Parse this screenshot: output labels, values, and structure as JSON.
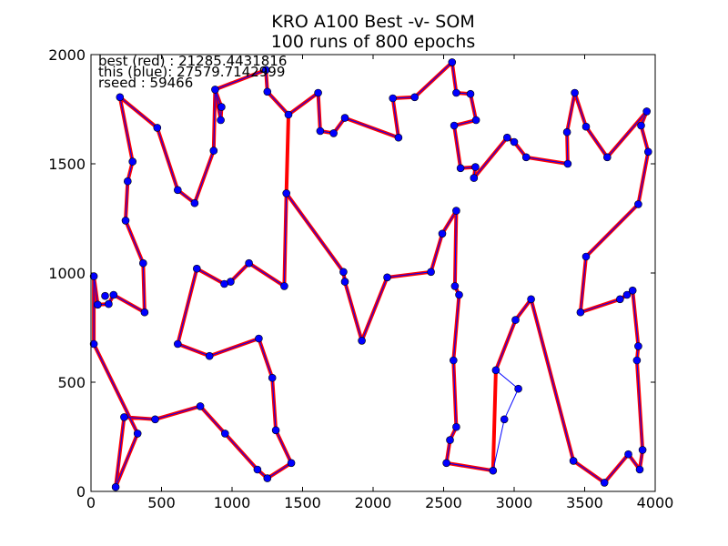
{
  "chart_data": {
    "type": "line",
    "title": "KRO A100 Best -v- SOM",
    "subtitle": "100 runs of 800 epochs",
    "xlabel": "",
    "ylabel": "",
    "xlim": [
      0,
      4000
    ],
    "ylim": [
      0,
      2000
    ],
    "x_ticks": [
      "0",
      "500",
      "1000",
      "1500",
      "2000",
      "2500",
      "3000",
      "3500",
      "4000"
    ],
    "y_ticks": [
      "0",
      "500",
      "1000",
      "1500",
      "2000"
    ],
    "grid": false,
    "annotations": [
      "best (red) : 21285.4431816",
      "this (blue): 27579.7142999",
      "rseed : 59466"
    ],
    "colors": {
      "best": "#ff0000",
      "this": "#0000ff",
      "marker": "#0000ff"
    },
    "cities": [
      [
        20,
        985
      ],
      [
        48,
        855
      ],
      [
        125,
        858
      ],
      [
        160,
        900
      ],
      [
        380,
        820
      ],
      [
        370,
        1045
      ],
      [
        245,
        1240
      ],
      [
        260,
        1420
      ],
      [
        295,
        1510
      ],
      [
        205,
        1805
      ],
      [
        470,
        1665
      ],
      [
        615,
        1380
      ],
      [
        735,
        1320
      ],
      [
        870,
        1560
      ],
      [
        880,
        1840
      ],
      [
        920,
        1700
      ],
      [
        925,
        1760
      ],
      [
        1240,
        1930
      ],
      [
        1250,
        1830
      ],
      [
        1400,
        1725
      ],
      [
        1610,
        1825
      ],
      [
        1625,
        1650
      ],
      [
        1720,
        1640
      ],
      [
        1800,
        1710
      ],
      [
        2180,
        1620
      ],
      [
        2140,
        1800
      ],
      [
        2295,
        1805
      ],
      [
        2560,
        1965
      ],
      [
        2590,
        1825
      ],
      [
        2690,
        1820
      ],
      [
        2730,
        1700
      ],
      [
        2575,
        1675
      ],
      [
        2620,
        1480
      ],
      [
        2725,
        1485
      ],
      [
        2715,
        1435
      ],
      [
        2950,
        1620
      ],
      [
        3000,
        1600
      ],
      [
        3085,
        1530
      ],
      [
        3380,
        1500
      ],
      [
        3375,
        1645
      ],
      [
        3430,
        1825
      ],
      [
        3510,
        1670
      ],
      [
        3660,
        1530
      ],
      [
        3940,
        1740
      ],
      [
        3900,
        1675
      ],
      [
        3950,
        1555
      ],
      [
        3880,
        1315
      ],
      [
        3510,
        1075
      ],
      [
        3470,
        820
      ],
      [
        3750,
        880
      ],
      [
        3800,
        900
      ],
      [
        3840,
        920
      ],
      [
        3880,
        665
      ],
      [
        3870,
        600
      ],
      [
        3910,
        190
      ],
      [
        3890,
        100
      ],
      [
        3810,
        170
      ],
      [
        3640,
        40
      ],
      [
        3420,
        140
      ],
      [
        3120,
        880
      ],
      [
        3010,
        785
      ],
      [
        2870,
        555
      ],
      [
        3030,
        470
      ],
      [
        2930,
        330
      ],
      [
        2850,
        95
      ],
      [
        2520,
        130
      ],
      [
        2545,
        235
      ],
      [
        2590,
        295
      ],
      [
        2570,
        600
      ],
      [
        2610,
        900
      ],
      [
        2580,
        940
      ],
      [
        2590,
        1285
      ],
      [
        2490,
        1180
      ],
      [
        2410,
        1005
      ],
      [
        2100,
        980
      ],
      [
        1920,
        690
      ],
      [
        1800,
        960
      ],
      [
        1790,
        1005
      ],
      [
        1385,
        1365
      ],
      [
        1370,
        940
      ],
      [
        1120,
        1045
      ],
      [
        990,
        960
      ],
      [
        945,
        950
      ],
      [
        750,
        1020
      ],
      [
        615,
        675
      ],
      [
        840,
        620
      ],
      [
        1190,
        700
      ],
      [
        1285,
        520
      ],
      [
        1310,
        280
      ],
      [
        1420,
        130
      ],
      [
        1250,
        60
      ],
      [
        1180,
        100
      ],
      [
        950,
        265
      ],
      [
        775,
        390
      ],
      [
        455,
        330
      ],
      [
        235,
        340
      ],
      [
        175,
        20
      ],
      [
        330,
        265
      ],
      [
        20,
        675
      ],
      [
        100,
        895
      ]
    ],
    "series": [
      {
        "name": "best (red)",
        "path": [
          0,
          1,
          2,
          3,
          4,
          5,
          6,
          7,
          8,
          9,
          10,
          11,
          12,
          13,
          14,
          15,
          16,
          14,
          17,
          18,
          19,
          78,
          77,
          76,
          75,
          74,
          73,
          72,
          71,
          70,
          69,
          68,
          67,
          66,
          65,
          64,
          61,
          60,
          59,
          58,
          57,
          56,
          55,
          54,
          53,
          52,
          51,
          50,
          49,
          48,
          47,
          46,
          45,
          44,
          43,
          42,
          41,
          40,
          39,
          38,
          37,
          36,
          35,
          34,
          33,
          32,
          31,
          30,
          29,
          28,
          27,
          26,
          25,
          24,
          23,
          22,
          21,
          20,
          19,
          78,
          79,
          80,
          81,
          82,
          83,
          84,
          85,
          86,
          87,
          88,
          89,
          90,
          91,
          92,
          93,
          94,
          95,
          96,
          97,
          98,
          0
        ]
      },
      {
        "name": "this (blue)",
        "path": [
          0,
          1,
          2,
          3,
          4,
          5,
          6,
          7,
          8,
          9,
          10,
          11,
          12,
          13,
          14,
          15,
          16,
          14,
          17,
          18,
          19,
          20,
          21,
          22,
          23,
          24,
          25,
          26,
          27,
          28,
          29,
          30,
          31,
          32,
          33,
          34,
          35,
          36,
          37,
          38,
          39,
          40,
          41,
          42,
          43,
          44,
          45,
          46,
          47,
          48,
          49,
          50,
          51,
          52,
          53,
          54,
          55,
          56,
          57,
          58,
          59,
          60,
          61,
          62,
          63,
          64,
          65,
          66,
          67,
          68,
          69,
          70,
          71,
          72,
          73,
          74,
          75,
          76,
          77,
          78,
          79,
          80,
          81,
          82,
          83,
          84,
          85,
          86,
          87,
          88,
          89,
          90,
          91,
          92,
          93,
          94,
          95,
          96,
          97,
          98,
          0
        ]
      }
    ]
  }
}
